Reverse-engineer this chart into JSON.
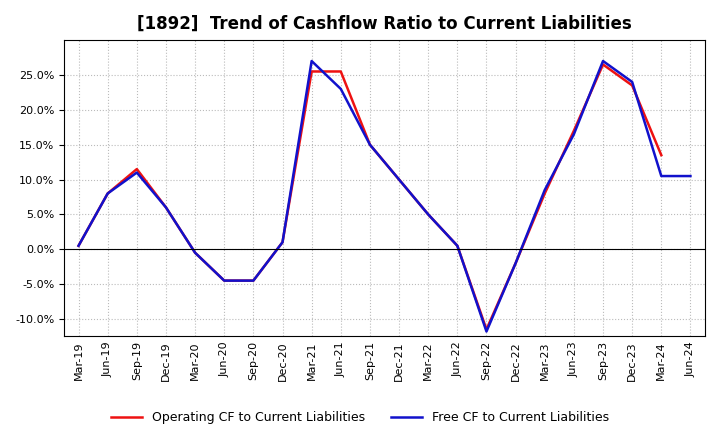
{
  "title": "[1892]  Trend of Cashflow Ratio to Current Liabilities",
  "x_labels": [
    "Mar-19",
    "Jun-19",
    "Sep-19",
    "Dec-19",
    "Mar-20",
    "Jun-20",
    "Sep-20",
    "Dec-20",
    "Mar-21",
    "Jun-21",
    "Sep-21",
    "Dec-21",
    "Mar-22",
    "Jun-22",
    "Sep-22",
    "Dec-22",
    "Mar-23",
    "Jun-23",
    "Sep-23",
    "Dec-23",
    "Mar-24",
    "Jun-24"
  ],
  "operating_cf": [
    0.5,
    8.0,
    11.5,
    6.0,
    -0.5,
    -4.5,
    -4.5,
    1.0,
    25.5,
    25.5,
    15.0,
    10.0,
    5.0,
    0.5,
    -11.5,
    -2.0,
    8.0,
    17.0,
    26.5,
    23.5,
    13.5,
    null
  ],
  "free_cf": [
    0.5,
    8.0,
    11.0,
    6.0,
    -0.5,
    -4.5,
    -4.5,
    1.0,
    27.0,
    23.0,
    15.0,
    10.0,
    5.0,
    0.5,
    -11.8,
    -2.0,
    8.5,
    16.5,
    27.0,
    24.0,
    10.5,
    10.5
  ],
  "operating_color": "#ee1111",
  "free_color": "#1111cc",
  "ylim": [
    -12.5,
    30.0
  ],
  "yticks": [
    -10.0,
    -5.0,
    0.0,
    5.0,
    10.0,
    15.0,
    20.0,
    25.0
  ],
  "background_color": "#ffffff",
  "plot_bg_color": "#ffffff",
  "grid_color": "#bbbbbb",
  "legend_operating": "Operating CF to Current Liabilities",
  "legend_free": "Free CF to Current Liabilities",
  "title_fontsize": 12,
  "label_fontsize": 8,
  "legend_fontsize": 9,
  "linewidth": 1.8
}
